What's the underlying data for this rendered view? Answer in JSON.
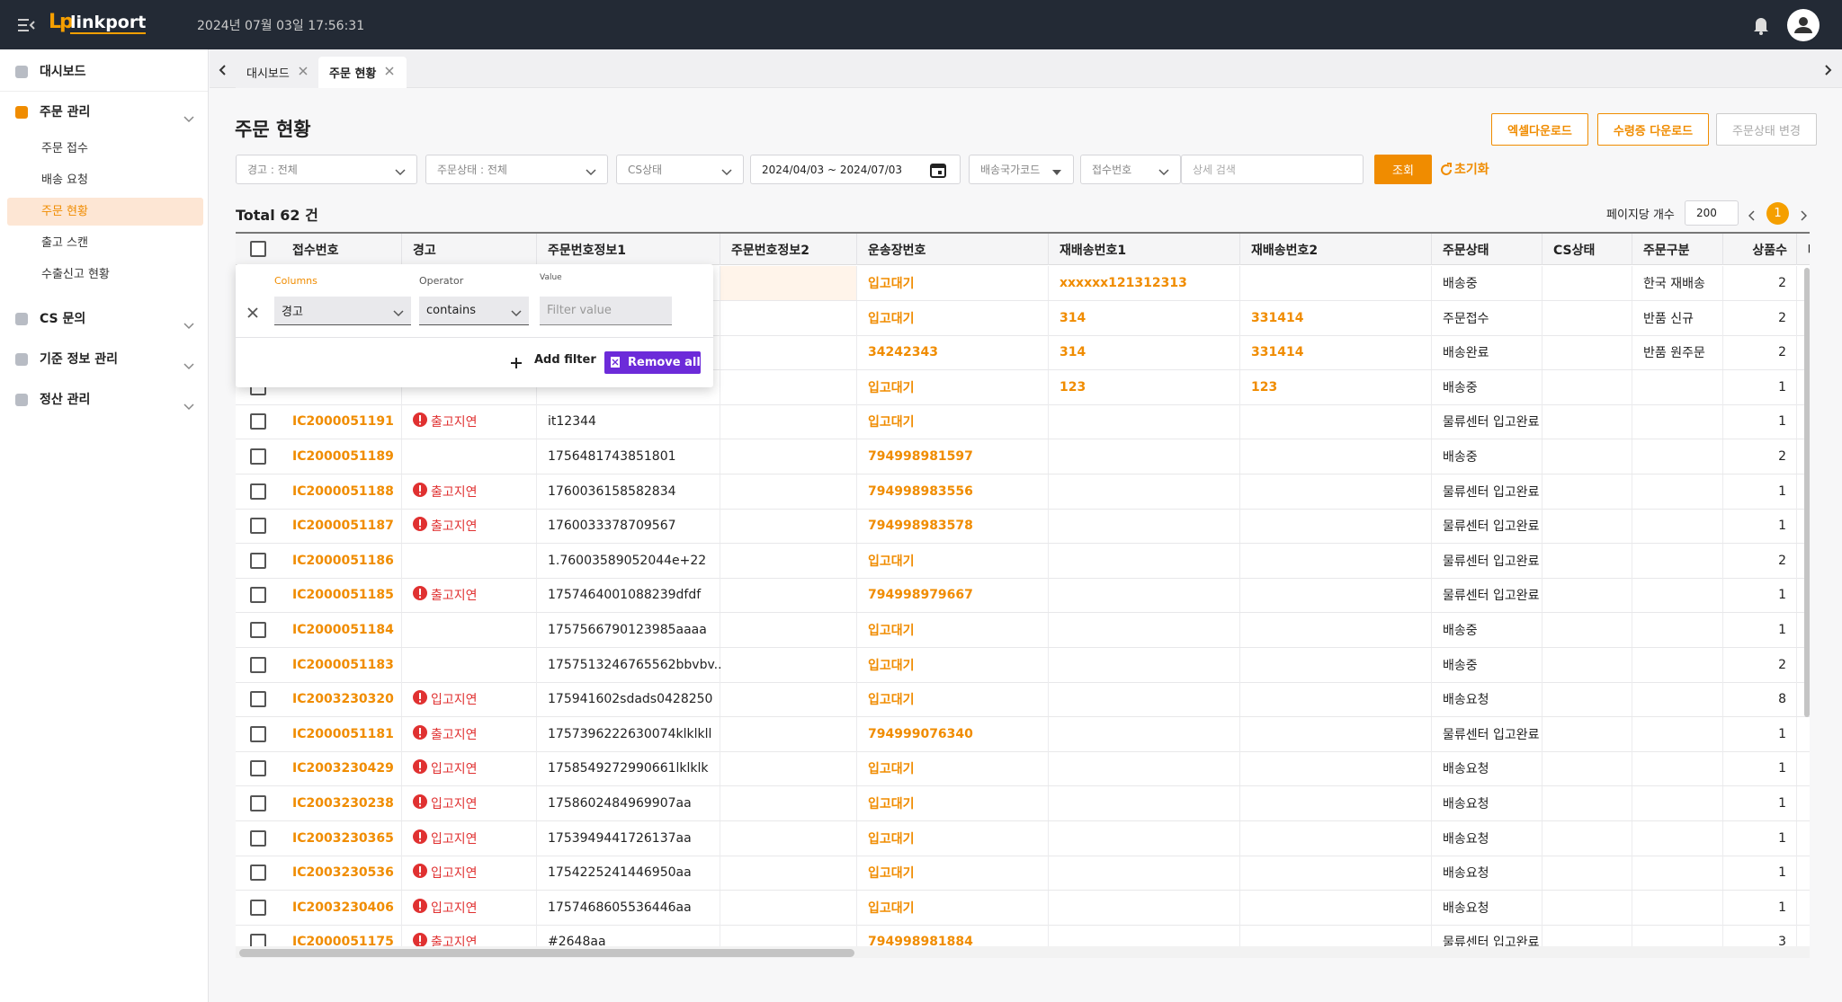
{
  "header": {
    "logo_mark": "Lp",
    "logo": "linkport",
    "datetime": "2024년 07월 03일 17:56:31"
  },
  "sidebar": [
    {
      "label": "대시보드"
    },
    {
      "label": "주문 관리",
      "children": [
        "주문 접수",
        "배송 요청",
        "주문 현황",
        "출고 스캔",
        "수출신고 현황"
      ]
    },
    {
      "label": "CS 문의"
    },
    {
      "label": "기준 정보 관리"
    },
    {
      "label": "정산 관리"
    }
  ],
  "tabs": [
    "대시보드",
    "주문 현황"
  ],
  "page": {
    "title": "주문 현황",
    "buttons": [
      "엑셀다운로드",
      "수령증 다운로드",
      "주문상태 변경"
    ],
    "filters": [
      "경고 : 전체",
      "주문상태 : 전체",
      "CS상태",
      "2024/04/03 ~ 2024/07/03",
      "배송국가코드",
      "접수번호"
    ],
    "search_placeholder": "상세 검색",
    "search_button": "조회",
    "reset_button": "초기화",
    "total": "Total 62 건",
    "per_page_label": "페이지당 개수",
    "per_page": "200",
    "current_page": "1"
  },
  "filter_popup": {
    "columns_label": "Columns",
    "operator_label": "Operator",
    "value_label": "Value",
    "column": "경고",
    "operator": "contains",
    "value_placeholder": "Filter value",
    "add": "Add filter",
    "remove": "Remove all"
  },
  "table": {
    "columns": [
      "접수번호",
      "경고",
      "주문번호정보1",
      "주문번호정보2",
      "운송장번호",
      "재배송번호1",
      "재배송번호2",
      "주문상태",
      "CS상태",
      "주문구분",
      "상품수",
      "배"
    ],
    "rows": [
      [
        null,
        null,
        null,
        null,
        "입고대기",
        "xxxxxx121312313",
        null,
        "배송중",
        null,
        "한국 재배송",
        "2"
      ],
      [
        null,
        null,
        null,
        null,
        "입고대기",
        "314",
        "331414",
        "주문접수",
        null,
        "반품 신규",
        "2"
      ],
      [
        null,
        null,
        null,
        null,
        "34242343",
        "314",
        "331414",
        "배송완료",
        null,
        "반품 원주문",
        "2"
      ],
      [
        null,
        null,
        null,
        null,
        "입고대기",
        "123",
        "123",
        "배송중",
        null,
        null,
        "1"
      ],
      [
        "IC2000051191",
        "출고지연",
        "it12344",
        null,
        "입고대기",
        null,
        null,
        "물류센터 입고완료",
        null,
        null,
        "1"
      ],
      [
        "IC2000051189",
        null,
        "1756481743851801",
        null,
        "794998981597",
        null,
        null,
        "배송중",
        null,
        null,
        "2"
      ],
      [
        "IC2000051188",
        "출고지연",
        "1760036158582834",
        null,
        "794998983556",
        null,
        null,
        "물류센터 입고완료",
        null,
        null,
        "1"
      ],
      [
        "IC2000051187",
        "출고지연",
        "1760033378709567",
        null,
        "794998983578",
        null,
        null,
        "물류센터 입고완료",
        null,
        null,
        "1"
      ],
      [
        "IC2000051186",
        null,
        "1.76003589052044e+22",
        null,
        "입고대기",
        null,
        null,
        "물류센터 입고완료",
        null,
        null,
        "2"
      ],
      [
        "IC2000051185",
        "출고지연",
        "1757464001088239dfdf",
        null,
        "794998979667",
        null,
        null,
        "물류센터 입고완료",
        null,
        null,
        "1"
      ],
      [
        "IC2000051184",
        null,
        "1757566790123985aaaa",
        null,
        "입고대기",
        null,
        null,
        "배송중",
        null,
        null,
        "1"
      ],
      [
        "IC2000051183",
        null,
        "1757513246765562bbvbv...",
        null,
        "입고대기",
        null,
        null,
        "배송중",
        null,
        null,
        "2"
      ],
      [
        "IC2003230320",
        "입고지연",
        "175941602sdads0428250",
        null,
        "입고대기",
        null,
        null,
        "배송요청",
        null,
        null,
        "8"
      ],
      [
        "IC2000051181",
        "출고지연",
        "1757396222630074klklkll",
        null,
        "794999076340",
        null,
        null,
        "물류센터 입고완료",
        null,
        null,
        "1"
      ],
      [
        "IC2003230429",
        "입고지연",
        "1758549272990661lklklk",
        null,
        "입고대기",
        null,
        null,
        "배송요청",
        null,
        null,
        "1"
      ],
      [
        "IC2003230238",
        "입고지연",
        "1758602484969907aa",
        null,
        "입고대기",
        null,
        null,
        "배송요청",
        null,
        null,
        "1"
      ],
      [
        "IC2003230365",
        "입고지연",
        "1753949441726137aa",
        null,
        "입고대기",
        null,
        null,
        "배송요청",
        null,
        null,
        "1"
      ],
      [
        "IC2003230536",
        "입고지연",
        "1754225241446950aa",
        null,
        "입고대기",
        null,
        null,
        "배송요청",
        null,
        null,
        "1"
      ],
      [
        "IC2003230406",
        "입고지연",
        "1757468605536446aa",
        null,
        "입고대기",
        null,
        null,
        "배송요청",
        null,
        null,
        "1"
      ],
      [
        "IC2000051175",
        "출고지연",
        "#2648aa",
        null,
        "794998981884",
        null,
        null,
        "물류센터 입고완료",
        null,
        null,
        "3"
      ]
    ]
  }
}
